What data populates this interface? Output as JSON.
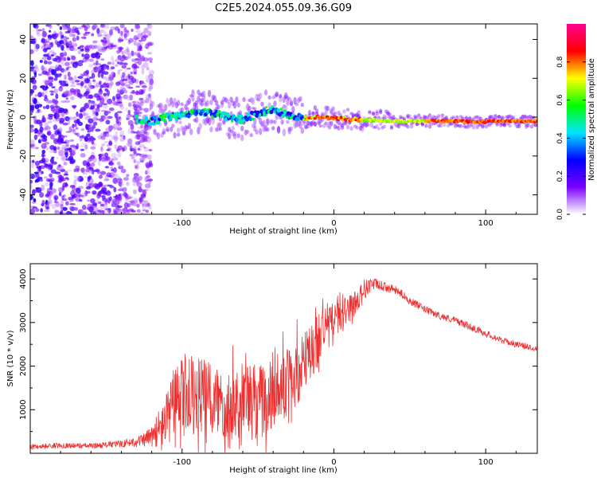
{
  "title": "C2E5.2024.055.09.36.G09",
  "chart_data": [
    {
      "type": "heatmap",
      "xlabel": "Height of straight line (km)",
      "ylabel": "Frequency (Hz)",
      "xlim": [
        -200,
        134
      ],
      "ylim": [
        -50,
        48
      ],
      "xticks": [
        -100,
        0,
        100
      ],
      "yticks": [
        -40,
        -20,
        0,
        20,
        40
      ],
      "grid": false,
      "colorbar": {
        "label": "Normalized spectral amplitude",
        "range": [
          0,
          1
        ],
        "ticks": [
          "0.0",
          "0.2",
          "0.4",
          "0.6",
          "0.8"
        ],
        "tick_values": [
          0,
          0.2,
          0.4,
          0.6,
          0.8
        ],
        "colormap": [
          "#ffffff",
          "#7b00ff",
          "#0000ff",
          "#00e5ff",
          "#00ff00",
          "#ffff00",
          "#ff0000",
          "#ff0090"
        ]
      },
      "ridge": {
        "x": [
          -130,
          -120,
          -110,
          -100,
          -90,
          -80,
          -70,
          -60,
          -50,
          -40,
          -30,
          -20,
          -10,
          0,
          10,
          20,
          40,
          60,
          80,
          95,
          110,
          134
        ],
        "y": [
          -1,
          -2,
          0,
          1,
          3,
          2,
          0,
          -1,
          2,
          4,
          1,
          -0.5,
          0,
          -0.5,
          -1,
          -1.5,
          -2,
          -2,
          -2,
          -2.5,
          -2,
          -2
        ]
      },
      "noise_region": {
        "x": [
          -200,
          -120
        ],
        "y": [
          -50,
          48
        ]
      }
    },
    {
      "type": "line",
      "xlabel": "Height of straight line (km)",
      "ylabel": "SNR (10 * v/v)",
      "xlim": [
        -200,
        134
      ],
      "ylim": [
        0,
        4350
      ],
      "xticks": [
        -100,
        0,
        100
      ],
      "yticks": [
        1000,
        2000,
        3000,
        4000
      ],
      "grid": false,
      "series": [
        {
          "color": "#ee3030",
          "x": [
            -200,
            -180,
            -160,
            -140,
            -125,
            -115,
            -110,
            -105,
            -100,
            -95,
            -90,
            -85,
            -80,
            -75,
            -70,
            -65,
            -60,
            -55,
            -50,
            -45,
            -40,
            -35,
            -30,
            -25,
            -20,
            -15,
            -10,
            -5,
            0,
            5,
            10,
            15,
            20,
            25,
            30,
            35,
            40,
            45,
            50,
            60,
            70,
            80,
            90,
            100,
            110,
            120,
            134
          ],
          "y": [
            150,
            180,
            170,
            220,
            300,
            500,
            800,
            1100,
            1300,
            1300,
            1300,
            1250,
            1200,
            1200,
            1150,
            1150,
            1200,
            1250,
            1200,
            1250,
            1350,
            1500,
            1700,
            1800,
            2000,
            2300,
            2700,
            2950,
            3100,
            3200,
            3300,
            3500,
            3750,
            3900,
            3850,
            3800,
            3750,
            3650,
            3500,
            3300,
            3150,
            3050,
            2900,
            2750,
            2600,
            2500,
            2400
          ],
          "spread": [
            60,
            60,
            60,
            80,
            150,
            400,
            700,
            900,
            1000,
            1000,
            1000,
            1000,
            1000,
            950,
            950,
            950,
            950,
            950,
            950,
            950,
            900,
            900,
            900,
            900,
            850,
            800,
            700,
            550,
            450,
            400,
            350,
            300,
            250,
            150,
            120,
            100,
            100,
            90,
            90,
            80,
            80,
            80,
            80,
            80,
            70,
            70,
            70
          ]
        }
      ]
    }
  ]
}
